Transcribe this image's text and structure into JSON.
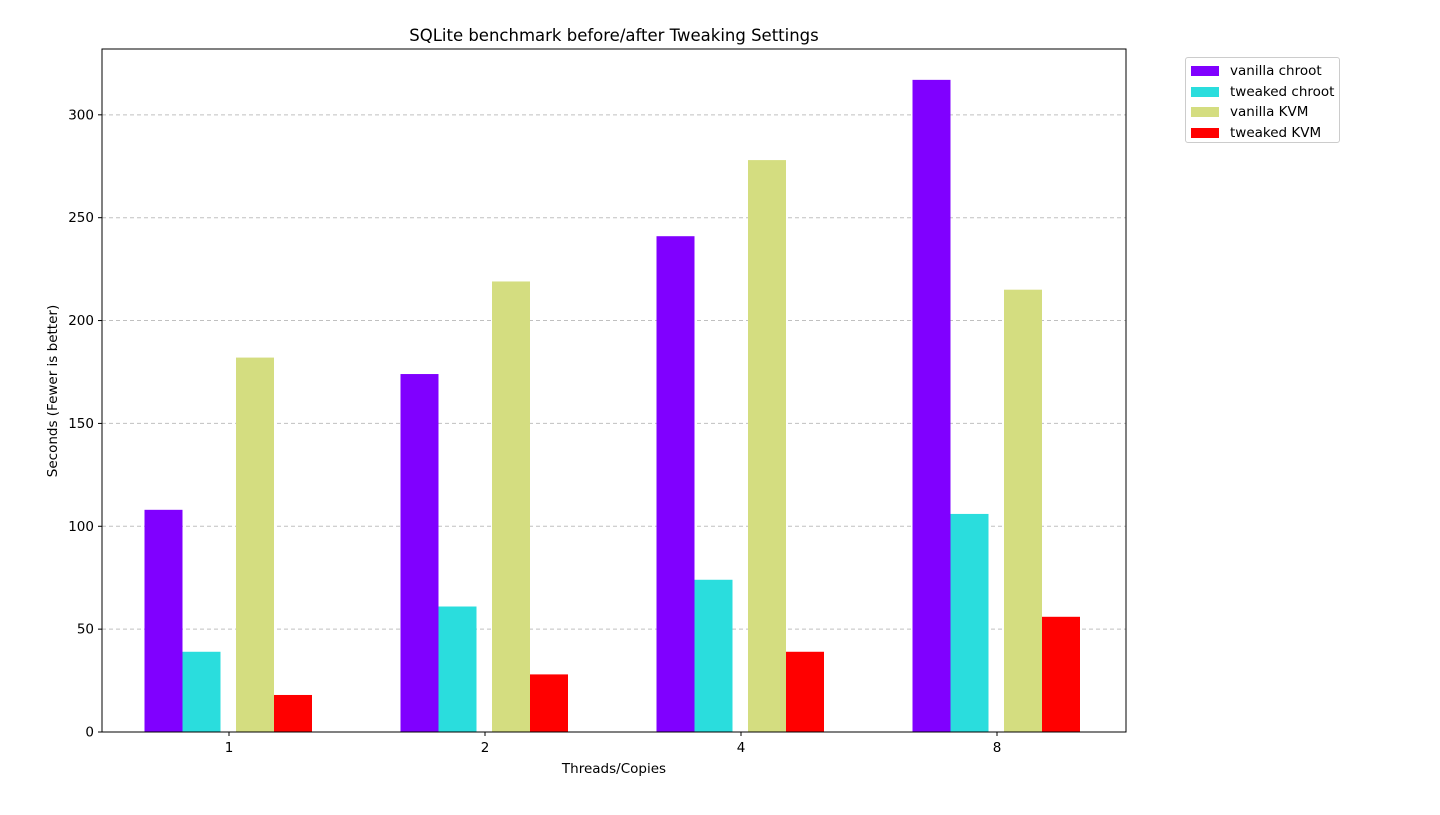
{
  "chart_data": {
    "type": "bar",
    "title": "SQLite benchmark before/after Tweaking Settings",
    "xlabel": "Threads/Copies",
    "ylabel": "Seconds (Fewer is better)",
    "categories": [
      "1",
      "2",
      "4",
      "8"
    ],
    "ylim": [
      0,
      332
    ],
    "yticks": [
      "0",
      "50",
      "100",
      "150",
      "200",
      "250",
      "300"
    ],
    "grid": "horizontal dashed",
    "legend_position": "outside top-right",
    "series": [
      {
        "name": "vanilla chroot",
        "color": "#8000ff",
        "values": [
          108,
          174,
          241,
          317
        ]
      },
      {
        "name": "tweaked chroot",
        "color": "#2adddd",
        "values": [
          39,
          61,
          74,
          106
        ]
      },
      {
        "name": "vanilla KVM",
        "color": "#d4dd80",
        "values": [
          182,
          219,
          278,
          215
        ]
      },
      {
        "name": "tweaked KVM",
        "color": "#ff0000",
        "values": [
          18,
          28,
          39,
          56
        ]
      }
    ]
  }
}
